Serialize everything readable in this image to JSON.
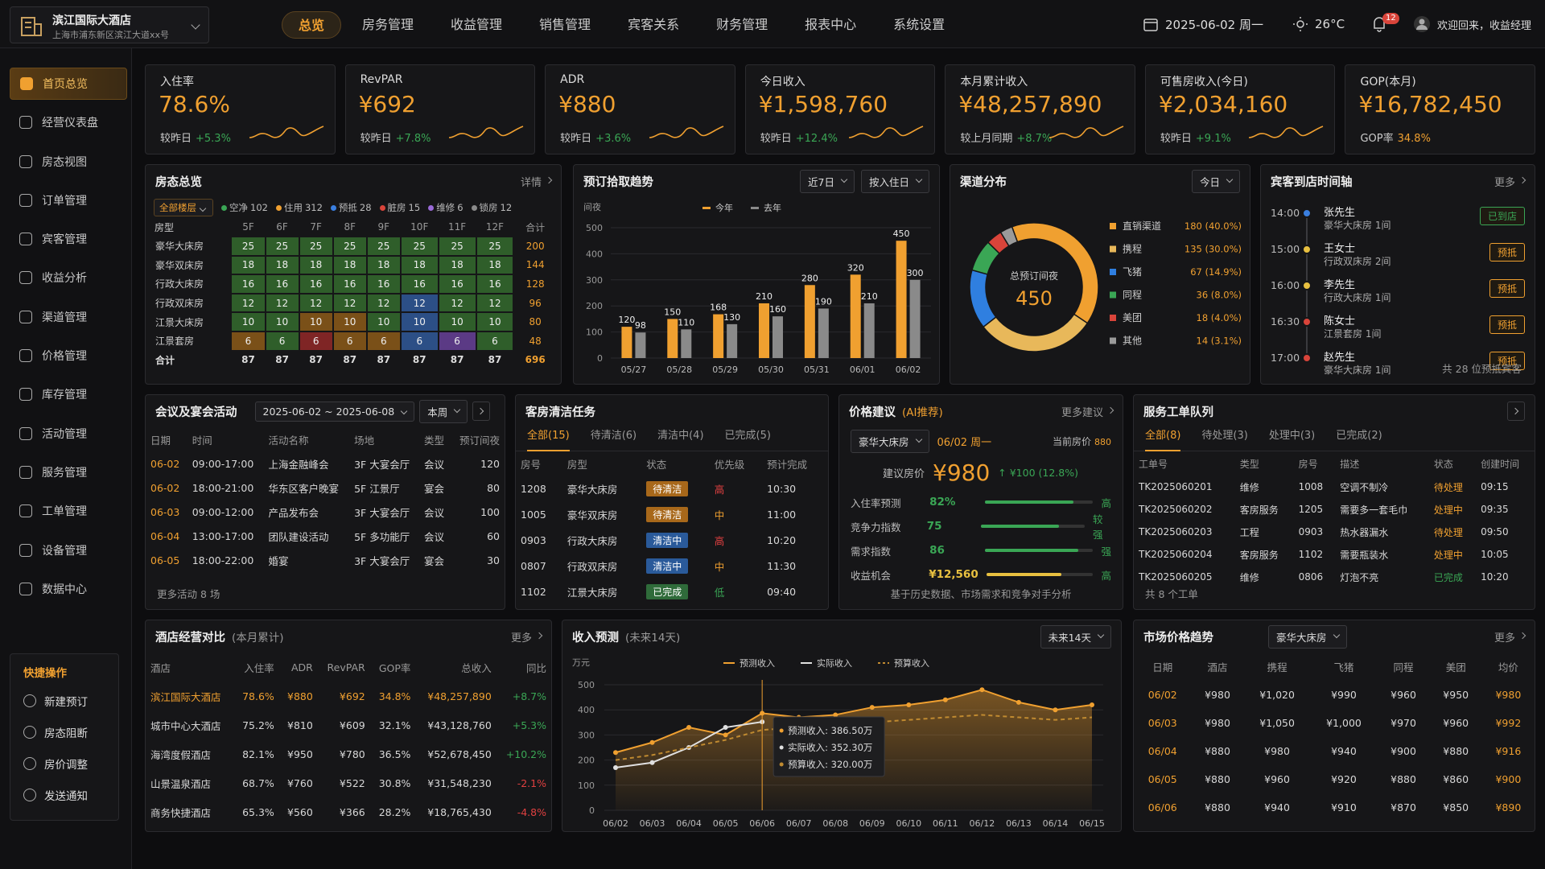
{
  "header": {
    "hotel_name": "滨江国际大酒店",
    "hotel_address": "上海市浦东新区滨江大道xx号",
    "nav": [
      "总览",
      "房务管理",
      "收益管理",
      "销售管理",
      "宾客关系",
      "财务管理",
      "报表中心",
      "系统设置"
    ],
    "date": "2025-06-02 周一",
    "weather": "26°C",
    "notifications": 12,
    "user": "欢迎回来，收益经理"
  },
  "sidebar": {
    "menu": [
      "首页总览",
      "经营仪表盘",
      "房态视图",
      "订单管理",
      "宾客管理",
      "收益分析",
      "渠道管理",
      "价格管理",
      "库存管理",
      "活动管理",
      "服务管理",
      "工单管理",
      "设备管理",
      "数据中心"
    ],
    "quick_title": "快捷操作",
    "quick": [
      "新建预订",
      "房态阻断",
      "房价调整",
      "发送通知"
    ]
  },
  "kpis": [
    {
      "label": "入住率",
      "value": "78.6%",
      "compare_label": "较昨日",
      "compare": "+5.3%"
    },
    {
      "label": "RevPAR",
      "value": "¥692",
      "compare_label": "较昨日",
      "compare": "+7.8%"
    },
    {
      "label": "ADR",
      "value": "¥880",
      "compare_label": "较昨日",
      "compare": "+3.6%"
    },
    {
      "label": "今日收入",
      "value": "¥1,598,760",
      "compare_label": "较昨日",
      "compare": "+12.4%"
    },
    {
      "label": "本月累计收入",
      "value": "¥48,257,890",
      "compare_label": "较上月同期",
      "compare": "+8.7%"
    },
    {
      "label": "可售房收入(今日)",
      "value": "¥2,034,160",
      "compare_label": "较昨日",
      "compare": "+9.1%"
    },
    {
      "label": "GOP(本月)",
      "value": "¥16,782,450",
      "compare_label": "GOP率",
      "compare": "34.8%"
    }
  ],
  "room_status": {
    "title": "房态总览",
    "more": "详情",
    "filter": "全部楼层",
    "legend": [
      {
        "label": "空净",
        "count": 102,
        "color": "#3aa655"
      },
      {
        "label": "住用",
        "count": 312,
        "color": "#f0a030"
      },
      {
        "label": "预抵",
        "count": 28,
        "color": "#3a7fe0"
      },
      {
        "label": "脏房",
        "count": 15,
        "color": "#d9443a"
      },
      {
        "label": "维修",
        "count": 6,
        "color": "#9a6ad8"
      },
      {
        "label": "锁房",
        "count": 12,
        "color": "#8a8a8a"
      }
    ],
    "columns": [
      "房型",
      "5F",
      "6F",
      "7F",
      "8F",
      "9F",
      "10F",
      "11F",
      "12F",
      "合计"
    ],
    "rows": [
      {
        "type": "豪华大床房",
        "floors": [
          25,
          25,
          25,
          25,
          25,
          25,
          25,
          25
        ],
        "total": 200,
        "colors": [
          "#2f5e2a",
          "#2f5e2a",
          "#2f5e2a",
          "#2f5e2a",
          "#2f5e2a",
          "#2f5e2a",
          "#2f5e2a",
          "#2f5e2a"
        ]
      },
      {
        "type": "豪华双床房",
        "floors": [
          18,
          18,
          18,
          18,
          18,
          18,
          18,
          18
        ],
        "total": 144,
        "colors": [
          "#2f5e2a",
          "#2f5e2a",
          "#2f5e2a",
          "#2f5e2a",
          "#2f5e2a",
          "#2f5e2a",
          "#2f5e2a",
          "#2f5e2a"
        ]
      },
      {
        "type": "行政大床房",
        "floors": [
          16,
          16,
          16,
          16,
          16,
          16,
          16,
          16
        ],
        "total": 128,
        "colors": [
          "#2f5e2a",
          "#2f5e2a",
          "#2f5e2a",
          "#2f5e2a",
          "#2f5e2a",
          "#2f5e2a",
          "#2f5e2a",
          "#2f5e2a"
        ]
      },
      {
        "type": "行政双床房",
        "floors": [
          12,
          12,
          12,
          12,
          12,
          12,
          12,
          12
        ],
        "total": 96,
        "colors": [
          "#2f5e2a",
          "#2f5e2a",
          "#2f5e2a",
          "#2f5e2a",
          "#2f5e2a",
          "#2c4f86",
          "#2f5e2a",
          "#2f5e2a"
        ]
      },
      {
        "type": "江景大床房",
        "floors": [
          10,
          10,
          10,
          10,
          10,
          10,
          10,
          10
        ],
        "total": 80,
        "colors": [
          "#2f5e2a",
          "#2f5e2a",
          "#7a5018",
          "#7a5018",
          "#2f5e2a",
          "#2c4f86",
          "#2f5e2a",
          "#2f5e2a"
        ]
      },
      {
        "type": "江景套房",
        "floors": [
          6,
          6,
          6,
          6,
          6,
          6,
          6,
          6
        ],
        "total": 48,
        "colors": [
          "#7a5018",
          "#2f5e2a",
          "#7f2525",
          "#7a5018",
          "#7a5018",
          "#2c4f86",
          "#5b3a85",
          "#2f5e2a"
        ]
      }
    ],
    "total": {
      "label": "合计",
      "floors": [
        87,
        87,
        87,
        87,
        87,
        87,
        87,
        87
      ],
      "total": 696
    }
  },
  "chart_data": [
    {
      "type": "bar",
      "title": "预订拾取趋势",
      "controls": [
        "近7日",
        "按入住日"
      ],
      "y_label": "间夜",
      "categories": [
        "05/27",
        "05/28",
        "05/29",
        "05/30",
        "05/31",
        "06/01",
        "06/02"
      ],
      "series": [
        {
          "name": "今年",
          "color": "#f0a030",
          "values": [
            120,
            150,
            168,
            210,
            280,
            320,
            450
          ]
        },
        {
          "name": "去年",
          "color": "#8a8a8a",
          "values": [
            98,
            110,
            130,
            160,
            190,
            210,
            300
          ]
        }
      ],
      "ylim": [
        0,
        500
      ],
      "yticks": [
        0,
        100,
        200,
        300,
        400,
        500
      ],
      "grid": true
    },
    {
      "type": "pie",
      "title": "渠道分布",
      "controls": [
        "今日"
      ],
      "donut": true,
      "center_label": "总预订间夜",
      "center_value": 450,
      "categories": [
        "直销渠道",
        "携程",
        "飞猪",
        "同程",
        "美团",
        "其他"
      ],
      "values": [
        180,
        135,
        67,
        36,
        18,
        14
      ],
      "value_labels": [
        "180 (40.0%)",
        "135 (30.0%)",
        "67 (14.9%)",
        "36 (8.0%)",
        "18 (4.0%)",
        "14 (3.1%)"
      ],
      "colors": [
        "#f0a030",
        "#e8b85a",
        "#2f7fe0",
        "#3aa655",
        "#d9443a",
        "#9a9a9a"
      ]
    },
    {
      "type": "line",
      "title": "收入预测",
      "subtitle": "(未来14天)",
      "controls": [
        "未来14天"
      ],
      "y_label": "万元",
      "categories": [
        "06/02",
        "06/03",
        "06/04",
        "06/05",
        "06/06",
        "06/07",
        "06/08",
        "06/09",
        "06/10",
        "06/11",
        "06/12",
        "06/13",
        "06/14",
        "06/15"
      ],
      "series": [
        {
          "name": "预测收入",
          "color": "#f0a030",
          "dash": false,
          "area": true,
          "values": [
            230,
            270,
            330,
            300,
            386.5,
            370,
            380,
            410,
            420,
            440,
            480,
            430,
            400,
            420
          ],
          "value_labels": [
            null,
            null,
            null,
            null,
            "预测收入: 386.50万",
            null,
            null,
            null,
            null,
            null,
            null,
            null,
            null,
            null
          ]
        },
        {
          "name": "实际收入",
          "color": "#e0e0e0",
          "dash": false,
          "area": false,
          "values": [
            170,
            190,
            250,
            330,
            352.3,
            null,
            null,
            null,
            null,
            null,
            null,
            null,
            null,
            null
          ],
          "value_labels": [
            null,
            null,
            null,
            null,
            "实际收入: 352.30万",
            null,
            null,
            null,
            null,
            null,
            null,
            null,
            null,
            null
          ]
        },
        {
          "name": "预算收入",
          "color": "#c08a30",
          "dash": true,
          "area": false,
          "values": [
            200,
            220,
            250,
            280,
            320,
            330,
            340,
            350,
            360,
            370,
            380,
            370,
            360,
            370
          ],
          "value_labels": [
            null,
            null,
            null,
            null,
            "预算收入: 320.00万",
            null,
            null,
            null,
            null,
            null,
            null,
            null,
            null,
            null
          ]
        }
      ],
      "ylim": [
        0,
        500
      ],
      "yticks": [
        0,
        100,
        200,
        300,
        400,
        500
      ],
      "grid": true
    }
  ],
  "arrivals": {
    "title": "宾客到店时间轴",
    "more": "更多",
    "footer": "共 28 位预抵宾客",
    "items": [
      {
        "time": "14:00",
        "name": "张先生",
        "detail": "豪华大床房 1间",
        "status": "已到店",
        "status_color": "#3aa655",
        "dot_color": "#3a7fe0"
      },
      {
        "time": "15:00",
        "name": "王女士",
        "detail": "行政双床房 2间",
        "status": "预抵",
        "status_color": "#f0a030",
        "dot_color": "#e8c040"
      },
      {
        "time": "16:00",
        "name": "李先生",
        "detail": "行政大床房 1间",
        "status": "预抵",
        "status_color": "#f0a030",
        "dot_color": "#e8c040"
      },
      {
        "time": "16:30",
        "name": "陈女士",
        "detail": "江景套房 1间",
        "status": "预抵",
        "status_color": "#f0a030",
        "dot_color": "#d9443a"
      },
      {
        "time": "17:00",
        "name": "赵先生",
        "detail": "豪华大床房 1间",
        "status": "预抵",
        "status_color": "#f0a030",
        "dot_color": "#d9443a"
      }
    ]
  },
  "meetings": {
    "title": "会议及宴会活动",
    "date_range": "2025-06-02 ~ 2025-06-08",
    "period": "本周",
    "columns": [
      "日期",
      "时间",
      "活动名称",
      "场地",
      "类型",
      "预订间夜"
    ],
    "rows": [
      [
        "06-02",
        "09:00-17:00",
        "上海金融峰会",
        "3F 大宴会厅",
        "会议",
        120
      ],
      [
        "06-02",
        "18:00-21:00",
        "华东区客户晚宴",
        "5F 江景厅",
        "宴会",
        80
      ],
      [
        "06-03",
        "09:00-12:00",
        "产品发布会",
        "3F 大宴会厅",
        "会议",
        100
      ],
      [
        "06-04",
        "13:00-17:00",
        "团队建设活动",
        "5F 多功能厅",
        "会议",
        60
      ],
      [
        "06-05",
        "18:00-22:00",
        "婚宴",
        "3F 大宴会厅",
        "宴会",
        30
      ]
    ],
    "footer": "更多活动 8 场"
  },
  "cleaning": {
    "title": "客房清洁任务",
    "tabs": [
      "全部(15)",
      "待清洁(6)",
      "清洁中(4)",
      "已完成(5)"
    ],
    "columns": [
      "房号",
      "房型",
      "状态",
      "优先级",
      "预计完成"
    ],
    "rows": [
      [
        "1208",
        "豪华大床房",
        "待清洁",
        "高",
        "10:30"
      ],
      [
        "1005",
        "豪华双床房",
        "待清洁",
        "中",
        "11:00"
      ],
      [
        "0903",
        "行政大床房",
        "清洁中",
        "高",
        "10:20"
      ],
      [
        "0807",
        "行政双床房",
        "清洁中",
        "中",
        "11:30"
      ],
      [
        "1102",
        "江景大床房",
        "已完成",
        "低",
        "09:40"
      ]
    ],
    "status_colors": [
      "#a8681a",
      "#a8681a",
      "#2a5a9a",
      "#2a5a9a",
      "#2f6b3a"
    ],
    "priority_colors": [
      "#e04040",
      "#f0a030",
      "#e04040",
      "#f0a030",
      "#3aa655"
    ]
  },
  "price": {
    "title": "价格建议",
    "note": "(AI推荐)",
    "more": "更多建议",
    "room": "豪华大床房",
    "date": "06/02 周一",
    "current_label": "当前房价",
    "current": 880,
    "suggest_label": "建议房价",
    "suggest": "¥980",
    "change": "↑ ¥100 (12.8%)",
    "metrics": [
      {
        "label": "入住率预测",
        "value": 82,
        "value_label": "82%",
        "level": "高",
        "color": "#3aa655"
      },
      {
        "label": "竞争力指数",
        "value": 75,
        "value_label": "75",
        "level": "较强",
        "color": "#3aa655"
      },
      {
        "label": "需求指数",
        "value": 86,
        "value_label": "86",
        "level": "强",
        "color": "#3aa655"
      },
      {
        "label": "收益机会",
        "value_label": "¥12,560",
        "level": "高",
        "color": "#e8c040"
      }
    ],
    "footer": "基于历史数据、市场需求和竞争对手分析"
  },
  "work_orders": {
    "title": "服务工单队列",
    "tabs": [
      "全部(8)",
      "待处理(3)",
      "处理中(3)",
      "已完成(2)"
    ],
    "columns": [
      "工单号",
      "类型",
      "房号",
      "描述",
      "状态",
      "创建时间"
    ],
    "rows": [
      [
        "TK2025060201",
        "维修",
        "1008",
        "空调不制冷",
        "待处理",
        "09:15"
      ],
      [
        "TK2025060202",
        "客房服务",
        "1205",
        "需要多一套毛巾",
        "处理中",
        "09:35"
      ],
      [
        "TK2025060203",
        "工程",
        "0903",
        "热水器漏水",
        "待处理",
        "09:50"
      ],
      [
        "TK2025060204",
        "客房服务",
        "1102",
        "需要瓶装水",
        "处理中",
        "10:05"
      ],
      [
        "TK2025060205",
        "维修",
        "0806",
        "灯泡不亮",
        "已完成",
        "10:20"
      ]
    ],
    "status_colors": [
      "#f0a030",
      "#f0a030",
      "#f0a030",
      "#f0a030",
      "#3aa655"
    ],
    "footer": "共 8 个工单"
  },
  "comparison": {
    "title": "酒店经营对比",
    "note": "(本月累计)",
    "more": "更多",
    "columns": [
      "酒店",
      "入住率",
      "ADR",
      "RevPAR",
      "GOP率",
      "总收入",
      "同比"
    ],
    "rows": [
      [
        "滨江国际大酒店",
        "78.6%",
        "¥880",
        "¥692",
        "34.8%",
        "¥48,257,890",
        "+8.7%"
      ],
      [
        "城市中心大酒店",
        "75.2%",
        "¥810",
        "¥609",
        "32.1%",
        "¥43,128,760",
        "+5.3%"
      ],
      [
        "海湾度假酒店",
        "82.1%",
        "¥950",
        "¥780",
        "36.5%",
        "¥52,678,450",
        "+10.2%"
      ],
      [
        "山景温泉酒店",
        "68.7%",
        "¥760",
        "¥522",
        "30.8%",
        "¥31,548,230",
        "-2.1%"
      ],
      [
        "商务快捷酒店",
        "65.3%",
        "¥560",
        "¥366",
        "28.2%",
        "¥18,765,430",
        "-4.8%"
      ]
    ]
  },
  "market": {
    "title": "市场价格趋势",
    "room": "豪华大床房",
    "more": "更多",
    "columns": [
      "日期",
      "酒店",
      "携程",
      "飞猪",
      "同程",
      "美团",
      "均价"
    ],
    "rows": [
      [
        "06/02",
        "¥980",
        "¥1,020",
        "¥990",
        "¥960",
        "¥950",
        "¥980"
      ],
      [
        "06/03",
        "¥980",
        "¥1,050",
        "¥1,000",
        "¥970",
        "¥960",
        "¥992"
      ],
      [
        "06/04",
        "¥880",
        "¥980",
        "¥940",
        "¥900",
        "¥880",
        "¥916"
      ],
      [
        "06/05",
        "¥880",
        "¥960",
        "¥920",
        "¥880",
        "¥860",
        "¥900"
      ],
      [
        "06/06",
        "¥880",
        "¥940",
        "¥910",
        "¥870",
        "¥850",
        "¥890"
      ]
    ]
  }
}
